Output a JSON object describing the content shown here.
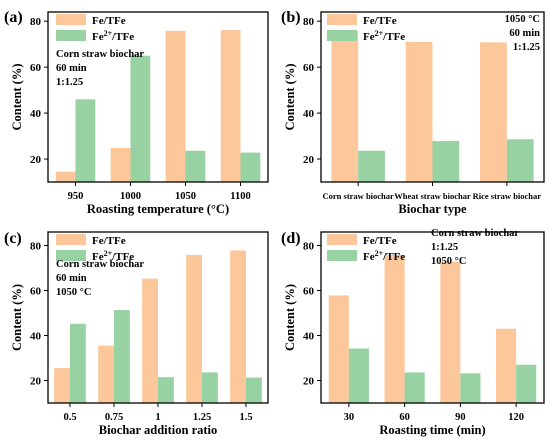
{
  "colors": {
    "fe_tfe": "#FCC79A",
    "fe2_tfe": "#98D2A3"
  },
  "chart_data": [
    {
      "type": "bar",
      "panel_label": "(a)",
      "categories": [
        "950",
        "1000",
        "1050",
        "1100"
      ],
      "xlabel": "Roasting temperature (°C)",
      "ylabel": "Content (%)",
      "ylim": [
        10,
        84
      ],
      "yticks": [
        20,
        40,
        60,
        80
      ],
      "legend": [
        "Fe/TFe",
        "Fe2+/TFe"
      ],
      "annotation": [
        "Corn straw biochar",
        "60 min",
        "1:1.25"
      ],
      "series": [
        {
          "name": "Fe/TFe",
          "values": [
            14.5,
            24.8,
            75.8,
            76.2
          ]
        },
        {
          "name": "Fe2+/TFe",
          "values": [
            46.0,
            65.0,
            23.6,
            22.8
          ]
        }
      ]
    },
    {
      "type": "bar",
      "panel_label": "(b)",
      "categories": [
        "Corn straw biochar",
        "Wheat straw biochar",
        "Rice straw biochar"
      ],
      "xlabel": "Biochar type",
      "ylabel": "Content (%)",
      "ylim": [
        10,
        84
      ],
      "yticks": [
        20,
        40,
        60,
        80
      ],
      "legend": [
        "Fe/TFe",
        "Fe2+/TFe"
      ],
      "annotation": [
        "1050 °C",
        "60 min",
        "1:1.25"
      ],
      "series": [
        {
          "name": "Fe/TFe",
          "values": [
            75.8,
            71.0,
            70.8
          ]
        },
        {
          "name": "Fe2+/TFe",
          "values": [
            23.6,
            27.8,
            28.6
          ]
        }
      ]
    },
    {
      "type": "bar",
      "panel_label": "(c)",
      "categories": [
        "0.5",
        "0.75",
        "1",
        "1.25",
        "1.5"
      ],
      "xlabel": "Biochar addition ratio",
      "ylabel": "Content (%)",
      "ylim": [
        10,
        86
      ],
      "yticks": [
        20,
        40,
        60,
        80
      ],
      "legend": [
        "Fe/TFe",
        "Fe2+/TFe"
      ],
      "annotation": [
        "Corn straw biochar",
        "60 min",
        "1050 °C"
      ],
      "series": [
        {
          "name": "Fe/TFe",
          "values": [
            25.5,
            35.5,
            65.3,
            75.8,
            77.8
          ]
        },
        {
          "name": "Fe2+/TFe",
          "values": [
            45.2,
            51.3,
            21.5,
            23.6,
            21.3
          ]
        }
      ]
    },
    {
      "type": "bar",
      "panel_label": "(d)",
      "categories": [
        "30",
        "60",
        "90",
        "120"
      ],
      "xlabel": "Roasting time (min)",
      "ylabel": "Content (%)",
      "ylim": [
        10,
        86
      ],
      "yticks": [
        20,
        40,
        60,
        80
      ],
      "legend": [
        "Fe/TFe",
        "Fe2+/TFe"
      ],
      "annotation": [
        "Corn straw biochar",
        "1:1.25",
        "1050 °C"
      ],
      "series": [
        {
          "name": "Fe/TFe",
          "values": [
            57.8,
            75.8,
            72.8,
            43.0
          ]
        },
        {
          "name": "Fe2+/TFe",
          "values": [
            34.2,
            23.6,
            23.2,
            27.0
          ]
        }
      ]
    }
  ]
}
